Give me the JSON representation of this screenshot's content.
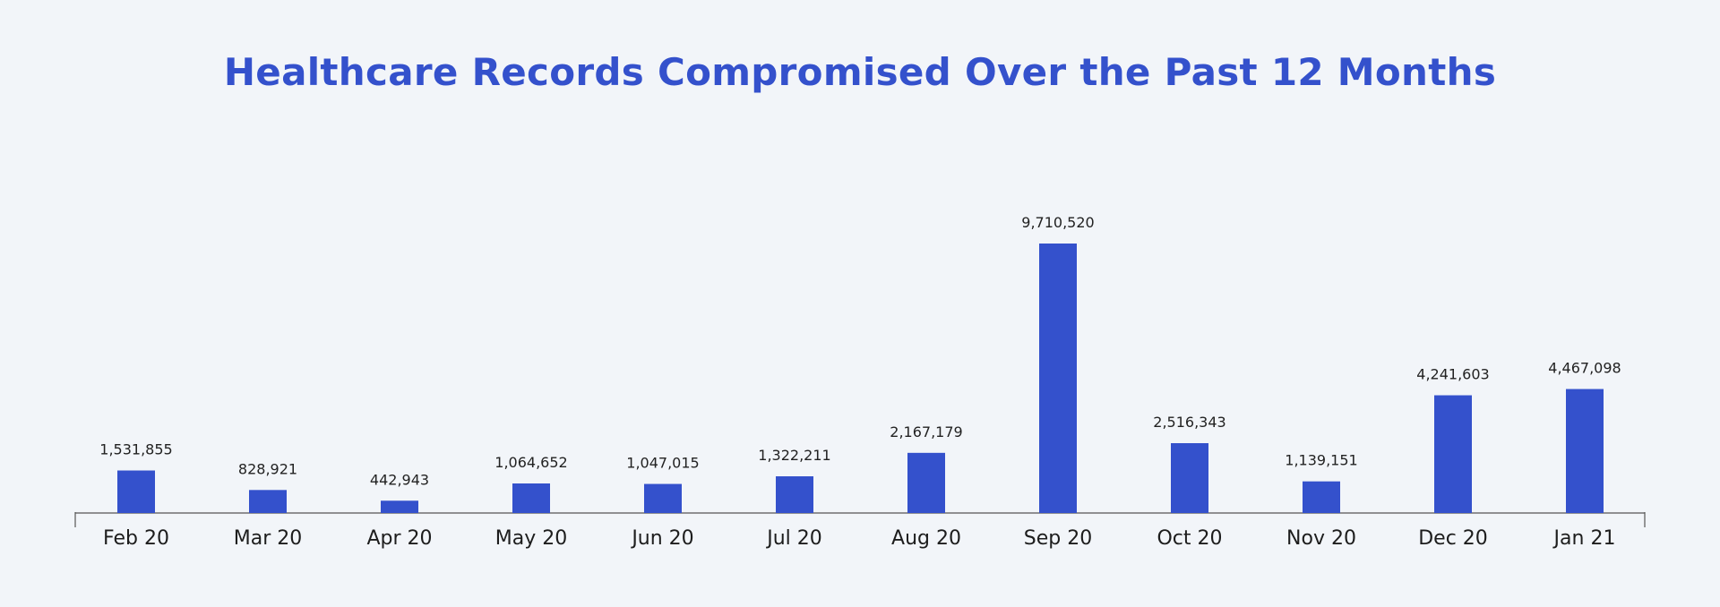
{
  "chart_data": {
    "type": "bar",
    "title": "Healthcare Records Compromised Over the Past 12 Months",
    "categories": [
      "Feb 20",
      "Mar 20",
      "Apr 20",
      "May 20",
      "Jun 20",
      "Jul 20",
      "Aug 20",
      "Sep 20",
      "Oct 20",
      "Nov 20",
      "Dec 20",
      "Jan 21"
    ],
    "values": [
      1531855,
      828921,
      442943,
      1064652,
      1047015,
      1322211,
      2167179,
      9710520,
      2516343,
      1139151,
      4241603,
      4467098
    ],
    "data_labels": [
      "1,531,855",
      "828,921",
      "442,943",
      "1,064,652",
      "1,047,015",
      "1,322,211",
      "2,167,179",
      "9,710,520",
      "2,516,343",
      "1,139,151",
      "4,241,603",
      "4,467,098"
    ],
    "xlabel": "",
    "ylabel": "",
    "ylim": [
      0,
      9710520
    ],
    "grid": false,
    "legend": "none",
    "colors": {
      "bar": "#3451cc",
      "title": "#3451cc",
      "axis": "#555555",
      "background": "#f2f5f9"
    }
  }
}
